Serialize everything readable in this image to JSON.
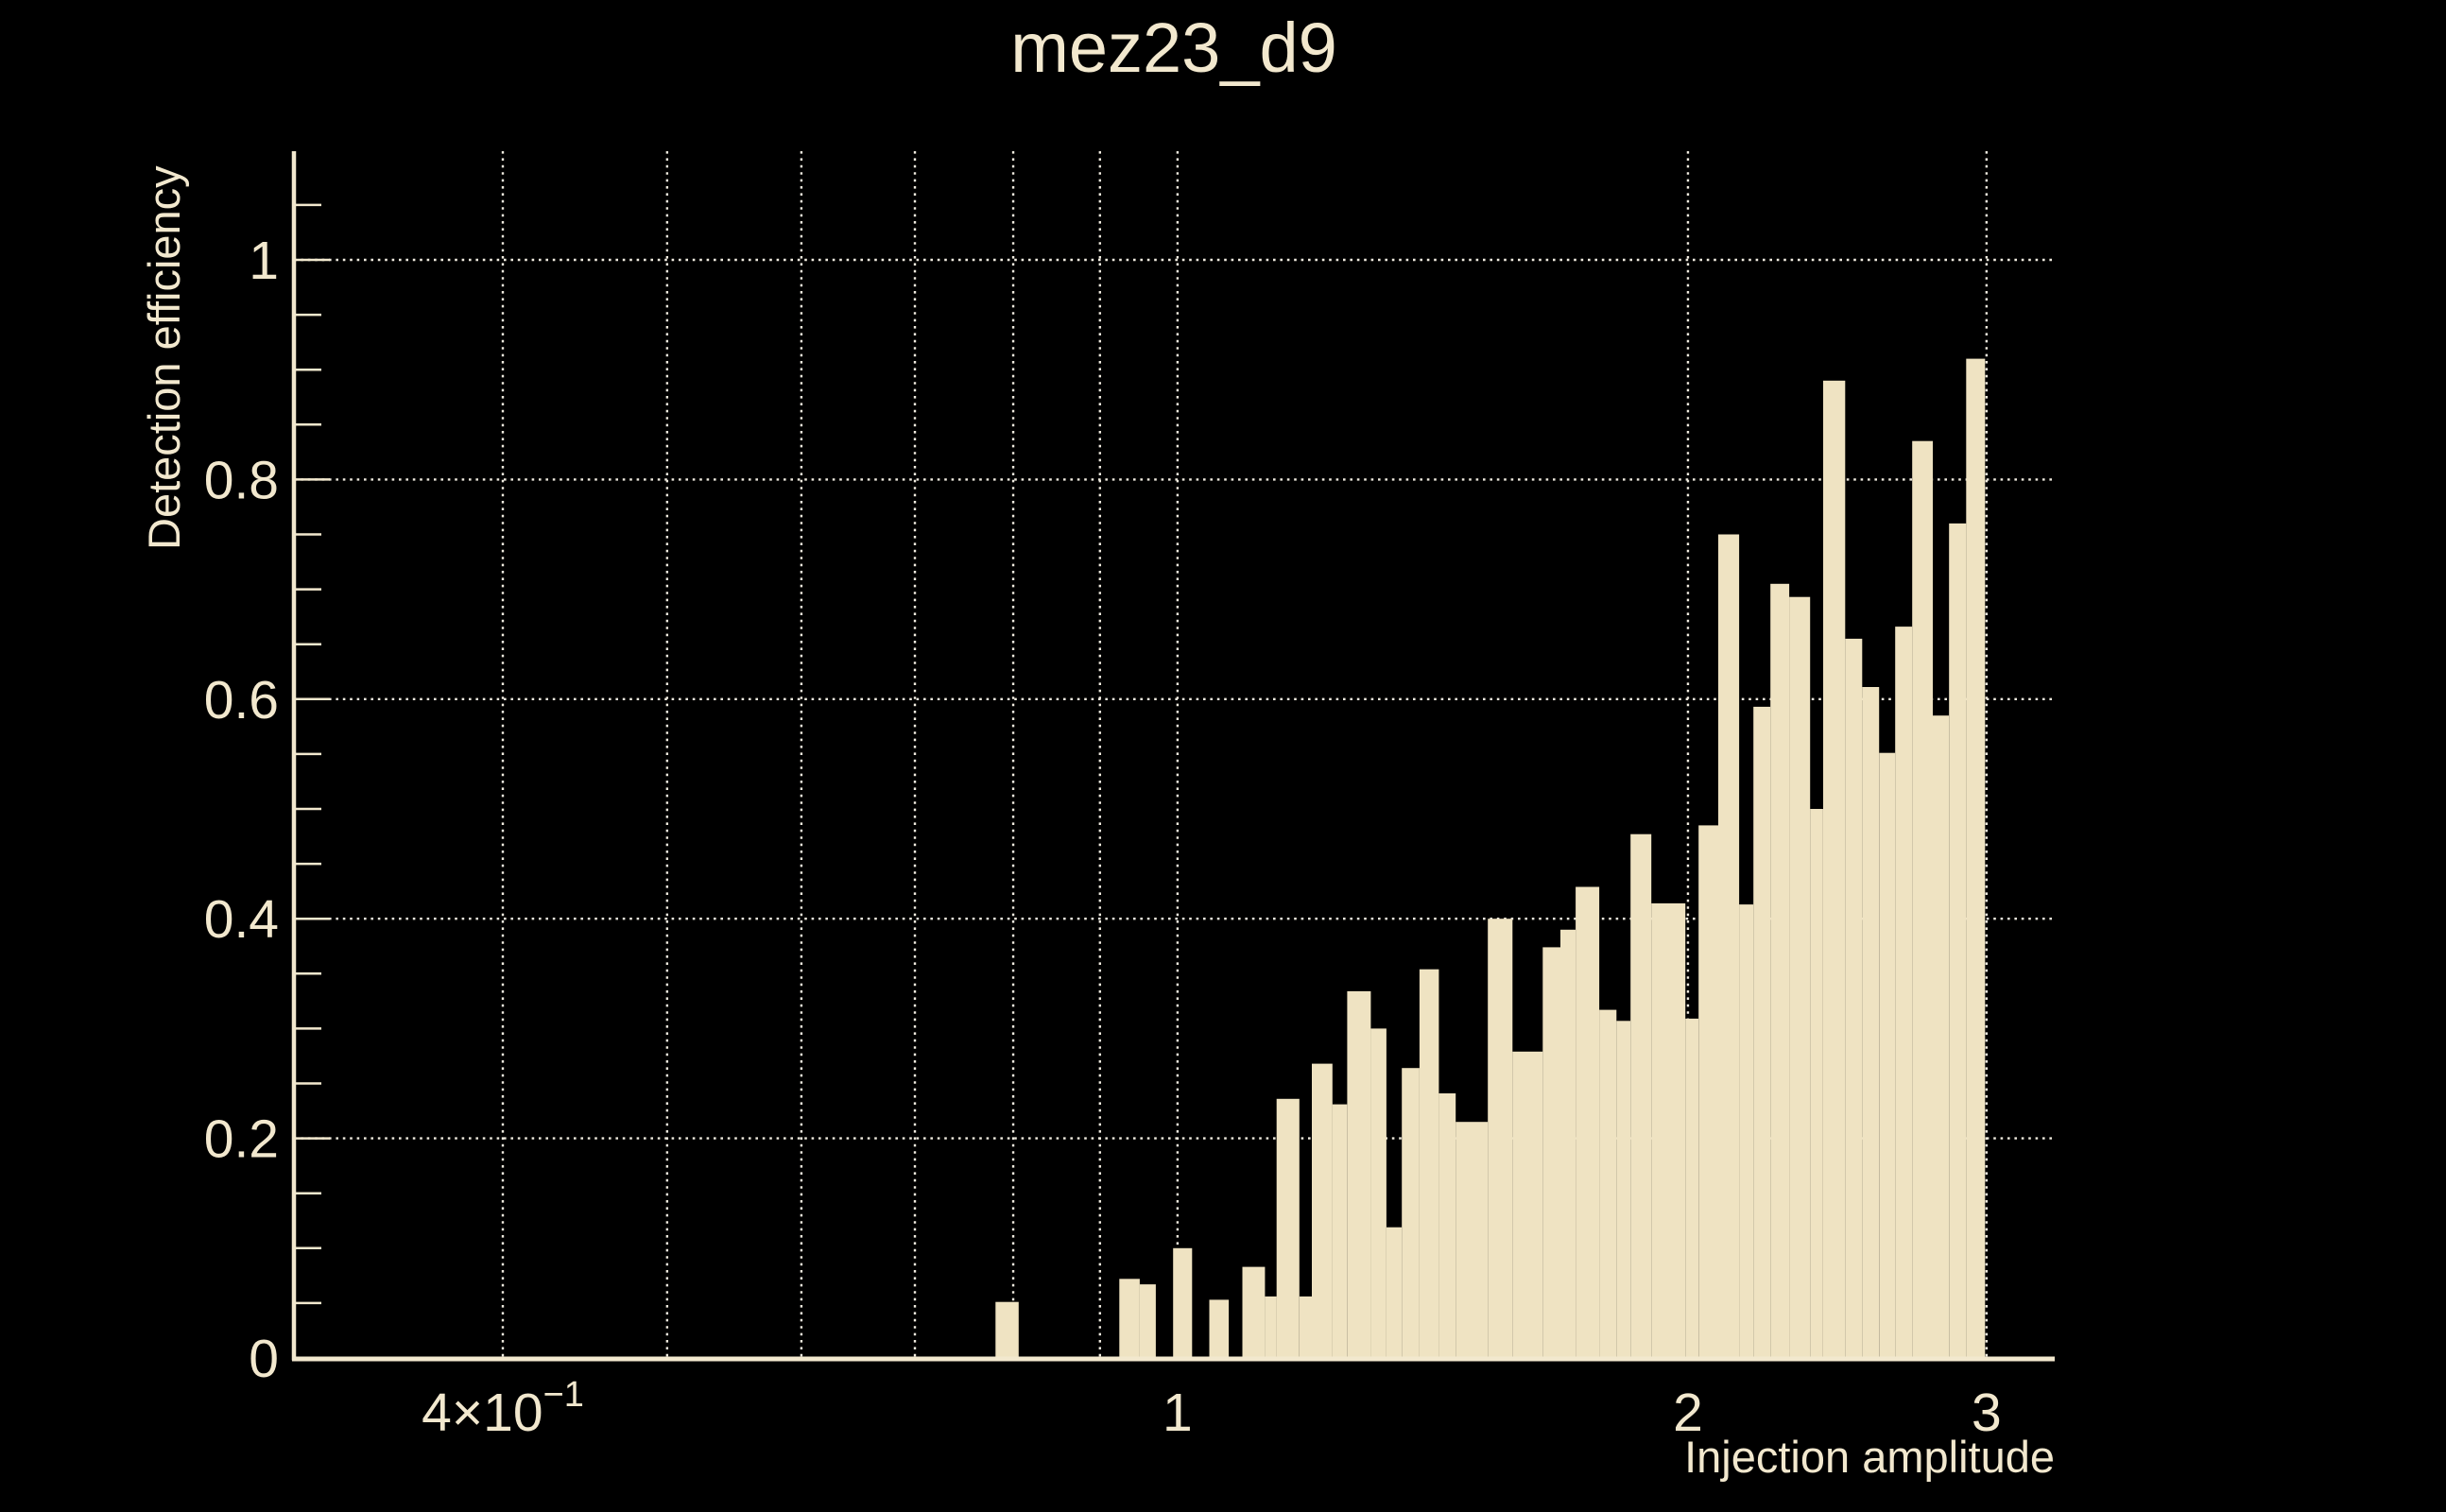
{
  "colors": {
    "background": "#000000",
    "bar_fill": "#efe3c2",
    "axis": "#f2e8ce",
    "grid_dots": "#f0ebdf",
    "text": "#f2e8ce"
  },
  "chart_data": {
    "type": "bar",
    "title": "mez23_d9",
    "xlabel": "Injection amplitude",
    "ylabel": "Detection efficiency",
    "x_scale": "log",
    "xlim": [
      0.3,
      3.29
    ],
    "ylim": [
      0,
      1.1
    ],
    "grid": "dotted",
    "legend": "none",
    "y_gridlines": [
      0.2,
      0.4,
      0.6,
      0.8,
      1.0
    ],
    "y_minor_tick_step": 0.05,
    "y_tick_labels": [
      {
        "value": 1,
        "text": "1"
      },
      {
        "value": 0.8,
        "text": "0.8"
      },
      {
        "value": 0.6,
        "text": "0.6"
      },
      {
        "value": 0.4,
        "text": "0.4"
      },
      {
        "value": 0.2,
        "text": "0.2"
      },
      {
        "value": 0,
        "text": "0"
      }
    ],
    "x_gridlines": [
      0.4,
      0.5,
      0.6,
      0.7,
      0.8,
      0.9,
      1,
      2,
      3
    ],
    "x_tick_labels": [
      {
        "value": 0.4,
        "main": "4×10",
        "sup": "−1"
      },
      {
        "value": 1,
        "main": "1"
      },
      {
        "value": 2,
        "main": "2"
      },
      {
        "value": 3,
        "main": "3"
      }
    ],
    "bins_format": [
      "x_left",
      "x_right",
      "efficiency"
    ],
    "bins": [
      [
        0.781,
        0.806,
        0.051
      ],
      [
        0.924,
        0.95,
        0.072
      ],
      [
        0.95,
        0.971,
        0.067
      ],
      [
        0.994,
        1.02,
        0.1
      ],
      [
        1.044,
        1.072,
        0.053
      ],
      [
        1.092,
        1.126,
        0.083
      ],
      [
        1.126,
        1.144,
        0.056
      ],
      [
        1.144,
        1.18,
        0.236
      ],
      [
        1.18,
        1.2,
        0.056
      ],
      [
        1.2,
        1.234,
        0.268
      ],
      [
        1.234,
        1.259,
        0.231
      ],
      [
        1.259,
        1.3,
        0.334
      ],
      [
        1.3,
        1.328,
        0.3
      ],
      [
        1.328,
        1.356,
        0.119
      ],
      [
        1.356,
        1.389,
        0.264
      ],
      [
        1.389,
        1.426,
        0.354
      ],
      [
        1.426,
        1.459,
        0.241
      ],
      [
        1.459,
        1.524,
        0.215
      ],
      [
        1.524,
        1.576,
        0.4
      ],
      [
        1.576,
        1.642,
        0.279
      ],
      [
        1.642,
        1.682,
        0.374
      ],
      [
        1.682,
        1.717,
        0.39
      ],
      [
        1.717,
        1.773,
        0.429
      ],
      [
        1.773,
        1.815,
        0.317
      ],
      [
        1.815,
        1.85,
        0.307
      ],
      [
        1.85,
        1.903,
        0.477
      ],
      [
        1.903,
        1.993,
        0.414
      ],
      [
        1.993,
        2.029,
        0.309
      ],
      [
        2.029,
        2.084,
        0.485
      ],
      [
        2.084,
        2.144,
        0.75
      ],
      [
        2.144,
        2.186,
        0.413
      ],
      [
        2.186,
        2.237,
        0.593
      ],
      [
        2.237,
        2.295,
        0.705
      ],
      [
        2.295,
        2.361,
        0.693
      ],
      [
        2.361,
        2.403,
        0.5
      ],
      [
        2.403,
        2.476,
        0.89
      ],
      [
        2.476,
        2.534,
        0.655
      ],
      [
        2.534,
        2.593,
        0.611
      ],
      [
        2.593,
        2.65,
        0.551
      ],
      [
        2.65,
        2.712,
        0.666
      ],
      [
        2.712,
        2.789,
        0.835
      ],
      [
        2.789,
        2.851,
        0.585
      ],
      [
        2.851,
        2.918,
        0.76
      ],
      [
        2.918,
        2.994,
        0.91
      ]
    ]
  }
}
